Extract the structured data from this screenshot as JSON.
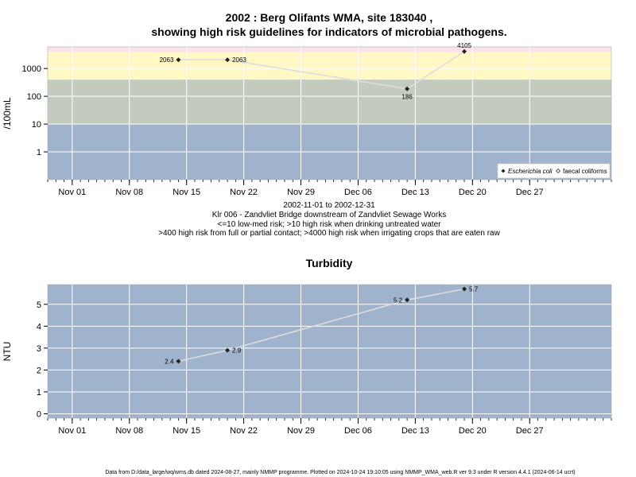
{
  "title_line1": "2002 : Berg Olifants WMA, site 183040 ,",
  "title_line2": "showing high risk guidelines for indicators of microbial pathogens.",
  "caption": [
    "2002-11-01 to 2002-12-31",
    "Klr 006 - Zandvliet Bridge downstream of Zandvliet Sewage Works",
    "<=10 low-med risk; >10 high risk when drinking untreated water",
    ">400 high risk from full or partial contact; >4000 high risk when irrigating crops that are eaten raw"
  ],
  "footer": "Data from D:/data_large/wq/wms.db dated 2024-08-27, mainly NMMP programme. Plotted on 2024-10-24 19:10:05 using NMMP_WMA_web.R ver 9.3 under R version 4.4.1 (2024-06-14 ucrt)",
  "colors": {
    "band_low": "#a0b3cc",
    "band_mid": "#c3cbbf",
    "band_high": "#fff7c4",
    "band_top": "#fbe0ee",
    "panel_bg": "#a0b3cc",
    "line": "#dddddd",
    "marker": "#222222"
  },
  "chart_data": [
    {
      "type": "line",
      "ylabel": "/100mL",
      "y_scale": "log10",
      "ylim": [
        0.1,
        6000
      ],
      "y_ticks": [
        1,
        10,
        100,
        1000
      ],
      "y_tick_labels": [
        "1",
        "10",
        "100",
        "1000"
      ],
      "xlim": [
        "2002-10-29",
        "2003-01-06"
      ],
      "x_ticks": [
        "2002-11-01",
        "2002-11-08",
        "2002-11-15",
        "2002-11-22",
        "2002-11-29",
        "2002-12-06",
        "2002-12-13",
        "2002-12-20",
        "2002-12-27"
      ],
      "x_tick_labels": [
        "Nov 01",
        "Nov 08",
        "Nov 15",
        "Nov 22",
        "Nov 29",
        "Dec 06",
        "Dec 13",
        "Dec 20",
        "Dec 27"
      ],
      "grid": true,
      "bands": [
        {
          "from": 0.1,
          "to": 10,
          "color": "#a0b3cc"
        },
        {
          "from": 10,
          "to": 400,
          "color": "#c3cbbf"
        },
        {
          "from": 400,
          "to": 4000,
          "color": "#fff7c4"
        },
        {
          "from": 4000,
          "to": 6000,
          "color": "#fbe0ee"
        }
      ],
      "legend": {
        "placement": "bottom-right",
        "entries": [
          "Escherichia coli",
          "faecal coliforms"
        ]
      },
      "series": [
        {
          "name": "Escherichia coli",
          "x": [
            "2002-11-14",
            "2002-11-20",
            "2002-12-12",
            "2002-12-19"
          ],
          "y": [
            2063,
            2063,
            186,
            4105
          ],
          "labels": [
            "2063",
            "2063",
            "186",
            "4105"
          ],
          "label_pos": [
            "left",
            "right",
            "below",
            "above"
          ]
        }
      ]
    },
    {
      "type": "line",
      "title": "Turbidity",
      "ylabel": "NTU",
      "ylim": [
        -0.2,
        5.9
      ],
      "y_ticks": [
        0,
        1,
        2,
        3,
        4,
        5
      ],
      "y_tick_labels": [
        "0",
        "1",
        "2",
        "3",
        "4",
        "5"
      ],
      "xlim": [
        "2002-10-29",
        "2003-01-06"
      ],
      "x_ticks": [
        "2002-11-01",
        "2002-11-08",
        "2002-11-15",
        "2002-11-22",
        "2002-11-29",
        "2002-12-06",
        "2002-12-13",
        "2002-12-20",
        "2002-12-27"
      ],
      "x_tick_labels": [
        "Nov 01",
        "Nov 08",
        "Nov 15",
        "Nov 22",
        "Nov 29",
        "Dec 06",
        "Dec 13",
        "Dec 20",
        "Dec 27"
      ],
      "grid": true,
      "series": [
        {
          "x": [
            "2002-11-14",
            "2002-11-20",
            "2002-12-12",
            "2002-12-19"
          ],
          "y": [
            2.4,
            2.9,
            5.2,
            5.7
          ],
          "labels": [
            "2.4",
            "2.9",
            "5.2",
            "5.7"
          ],
          "label_pos": [
            "left",
            "right",
            "left",
            "right"
          ]
        }
      ]
    }
  ]
}
